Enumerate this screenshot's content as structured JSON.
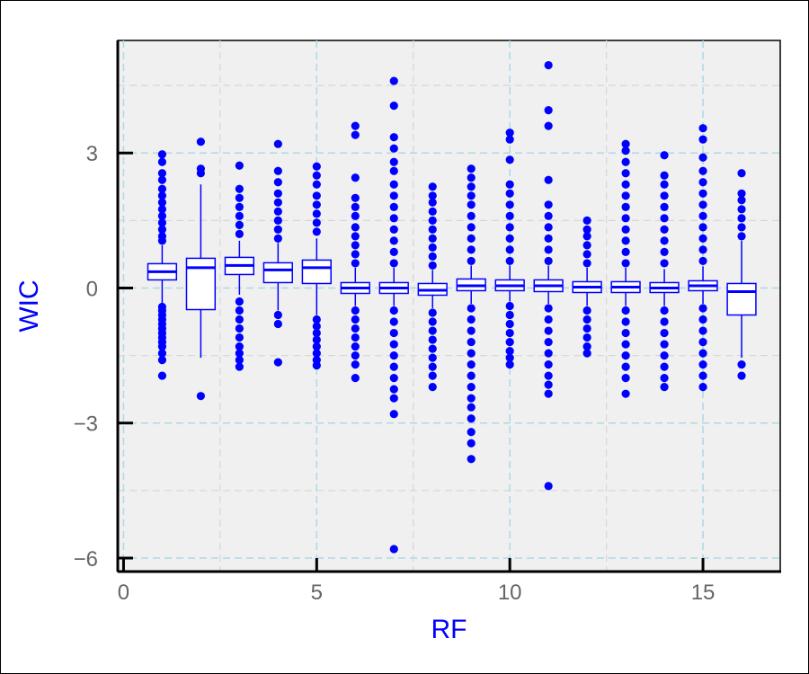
{
  "chart_data": {
    "type": "boxplot",
    "title": "",
    "xlabel": "RF",
    "ylabel": "WIC",
    "xlim": [
      -0.15,
      17.0
    ],
    "ylim": [
      -6.3,
      5.5
    ],
    "xticks": [
      0,
      5,
      10,
      15
    ],
    "xtick_labels": [
      "0",
      "5",
      "10",
      "15"
    ],
    "yticks": [
      -6,
      -3,
      0,
      3
    ],
    "ytick_labels": [
      "−6",
      "−3",
      "0",
      "3"
    ],
    "grid": true,
    "colors": {
      "box": "#0000ff",
      "points": "#0000ff",
      "panel": "#f0f0f0",
      "grid_major": "#add8e6",
      "grid_minor": "#d8d8d8",
      "axis_title": "#0000ff",
      "tick_label": "#666666"
    },
    "boxes": [
      {
        "x": 1,
        "q1": 0.18,
        "median": 0.36,
        "q3": 0.54,
        "whisker_low": -0.35,
        "whisker_high": 0.95,
        "outliers_low": [
          -0.42,
          -0.5,
          -0.6,
          -0.7,
          -0.8,
          -0.9,
          -1.0,
          -1.1,
          -1.2,
          -1.3,
          -1.45,
          -1.6,
          -1.95
        ],
        "outliers_high": [
          1.05,
          1.15,
          1.3,
          1.45,
          1.6,
          1.75,
          1.9,
          2.05,
          2.2,
          2.4,
          2.55,
          2.8,
          2.97
        ]
      },
      {
        "x": 2,
        "q1": -0.48,
        "median": 0.45,
        "q3": 0.66,
        "whisker_low": -1.55,
        "whisker_high": 2.3,
        "outliers_low": [
          -2.4
        ],
        "outliers_high": [
          2.55,
          2.65,
          3.25
        ]
      },
      {
        "x": 3,
        "q1": 0.3,
        "median": 0.5,
        "q3": 0.68,
        "whisker_low": -0.15,
        "whisker_high": 1.05,
        "outliers_low": [
          -0.3,
          -0.5,
          -0.7,
          -0.9,
          -1.1,
          -1.3,
          -1.45,
          -1.6,
          -1.75
        ],
        "outliers_high": [
          1.2,
          1.4,
          1.6,
          1.8,
          2.0,
          2.2,
          2.72
        ]
      },
      {
        "x": 4,
        "q1": 0.12,
        "median": 0.4,
        "q3": 0.56,
        "whisker_low": -0.5,
        "whisker_high": 1.0,
        "outliers_low": [
          -0.6,
          -0.8,
          -1.65
        ],
        "outliers_high": [
          1.1,
          1.3,
          1.5,
          1.7,
          1.9,
          2.1,
          2.35,
          2.6,
          3.2
        ]
      },
      {
        "x": 5,
        "q1": 0.1,
        "median": 0.45,
        "q3": 0.62,
        "whisker_low": -0.6,
        "whisker_high": 1.1,
        "outliers_low": [
          -0.7,
          -0.85,
          -1.0,
          -1.15,
          -1.3,
          -1.45,
          -1.6,
          -1.72
        ],
        "outliers_high": [
          1.25,
          1.45,
          1.65,
          1.85,
          2.05,
          2.3,
          2.5,
          2.7
        ]
      },
      {
        "x": 6,
        "q1": -0.12,
        "median": 0.0,
        "q3": 0.12,
        "whisker_low": -0.4,
        "whisker_high": 0.45,
        "outliers_low": [
          -0.5,
          -0.7,
          -0.9,
          -1.1,
          -1.3,
          -1.5,
          -1.7,
          -2.0
        ],
        "outliers_high": [
          0.55,
          0.75,
          0.95,
          1.15,
          1.35,
          1.6,
          1.8,
          2.0,
          2.45,
          3.4,
          3.6
        ]
      },
      {
        "x": 7,
        "q1": -0.12,
        "median": 0.0,
        "q3": 0.12,
        "whisker_low": -0.4,
        "whisker_high": 0.45,
        "outliers_low": [
          -0.5,
          -0.75,
          -1.0,
          -1.25,
          -1.5,
          -1.75,
          -2.0,
          -2.25,
          -2.45,
          -2.8,
          -5.8
        ],
        "outliers_high": [
          0.55,
          0.8,
          1.05,
          1.3,
          1.55,
          1.8,
          2.05,
          2.3,
          2.6,
          2.8,
          3.1,
          3.35,
          4.05,
          4.6
        ]
      },
      {
        "x": 8,
        "q1": -0.16,
        "median": -0.05,
        "q3": 0.1,
        "whisker_low": -0.45,
        "whisker_high": 0.4,
        "outliers_low": [
          -0.55,
          -0.75,
          -0.95,
          -1.15,
          -1.35,
          -1.55,
          -1.75,
          -1.95,
          -2.2
        ],
        "outliers_high": [
          0.5,
          0.7,
          0.9,
          1.1,
          1.3,
          1.5,
          1.7,
          1.9,
          2.05,
          2.25
        ]
      },
      {
        "x": 9,
        "q1": -0.06,
        "median": 0.05,
        "q3": 0.2,
        "whisker_low": -0.35,
        "whisker_high": 0.5,
        "outliers_low": [
          -0.45,
          -0.7,
          -0.95,
          -1.2,
          -1.45,
          -1.7,
          -1.95,
          -2.2,
          -2.45,
          -2.65,
          -2.9,
          -3.2,
          -3.45,
          -3.8
        ],
        "outliers_high": [
          0.6,
          0.85,
          1.1,
          1.35,
          1.6,
          1.85,
          2.05,
          2.25,
          2.45,
          2.65
        ]
      },
      {
        "x": 10,
        "q1": -0.06,
        "median": 0.05,
        "q3": 0.18,
        "whisker_low": -0.3,
        "whisker_high": 0.5,
        "outliers_low": [
          -0.4,
          -0.6,
          -0.8,
          -1.0,
          -1.2,
          -1.4,
          -1.55,
          -1.7
        ],
        "outliers_high": [
          0.6,
          0.85,
          1.1,
          1.35,
          1.6,
          1.85,
          2.1,
          2.3,
          2.85,
          3.3,
          3.45
        ]
      },
      {
        "x": 11,
        "q1": -0.08,
        "median": 0.05,
        "q3": 0.18,
        "whisker_low": -0.35,
        "whisker_high": 0.5,
        "outliers_low": [
          -0.45,
          -0.7,
          -0.95,
          -1.2,
          -1.45,
          -1.7,
          -1.95,
          -2.15,
          -2.35,
          -4.4
        ],
        "outliers_high": [
          0.6,
          0.85,
          1.1,
          1.35,
          1.6,
          1.85,
          2.4,
          3.6,
          3.95,
          4.95
        ]
      },
      {
        "x": 12,
        "q1": -0.1,
        "median": 0.02,
        "q3": 0.14,
        "whisker_low": -0.4,
        "whisker_high": 0.45,
        "outliers_low": [
          -0.5,
          -0.7,
          -0.9,
          -1.1,
          -1.3,
          -1.45
        ],
        "outliers_high": [
          0.55,
          0.75,
          0.95,
          1.15,
          1.3,
          1.5
        ]
      },
      {
        "x": 13,
        "q1": -0.1,
        "median": 0.02,
        "q3": 0.14,
        "whisker_low": -0.4,
        "whisker_high": 0.45,
        "outliers_low": [
          -0.5,
          -0.75,
          -1.0,
          -1.25,
          -1.5,
          -1.75,
          -2.0,
          -2.35
        ],
        "outliers_high": [
          0.55,
          0.8,
          1.05,
          1.3,
          1.55,
          1.8,
          2.05,
          2.3,
          2.55,
          2.8,
          3.05,
          3.2
        ]
      },
      {
        "x": 14,
        "q1": -0.1,
        "median": 0.0,
        "q3": 0.12,
        "whisker_low": -0.4,
        "whisker_high": 0.42,
        "outliers_low": [
          -0.5,
          -0.75,
          -1.0,
          -1.25,
          -1.5,
          -1.75,
          -2.0,
          -2.2
        ],
        "outliers_high": [
          0.55,
          0.8,
          1.05,
          1.3,
          1.55,
          1.8,
          2.05,
          2.3,
          2.5,
          2.95
        ]
      },
      {
        "x": 15,
        "q1": -0.06,
        "median": 0.05,
        "q3": 0.16,
        "whisker_low": -0.35,
        "whisker_high": 0.48,
        "outliers_low": [
          -0.45,
          -0.7,
          -0.95,
          -1.2,
          -1.45,
          -1.7,
          -1.95,
          -2.2
        ],
        "outliers_high": [
          0.6,
          0.85,
          1.1,
          1.35,
          1.6,
          1.85,
          2.1,
          2.35,
          2.6,
          2.9,
          3.3,
          3.55
        ]
      },
      {
        "x": 16,
        "q1": -0.6,
        "median": -0.08,
        "q3": 0.1,
        "whisker_low": -1.55,
        "whisker_high": 1.05,
        "outliers_low": [
          -1.7,
          -1.95
        ],
        "outliers_high": [
          1.15,
          1.35,
          1.55,
          1.75,
          1.95,
          2.1,
          2.55
        ]
      }
    ]
  }
}
